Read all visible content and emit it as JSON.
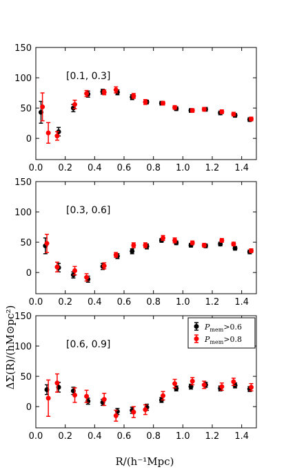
{
  "chart_data": [
    {
      "type": "scatter",
      "annotation": "[0.1, 0.3]",
      "xlim": [
        0.0,
        1.5
      ],
      "ylim": [
        -35,
        150
      ],
      "xticks": [
        "0.0",
        "0.2",
        "0.4",
        "0.6",
        "0.8",
        "1.0",
        "1.2",
        "1.4"
      ],
      "yticks": [
        "0",
        "50",
        "100",
        "150"
      ],
      "series": [
        {
          "color": "#000000",
          "points": [
            {
              "x": 0.035,
              "y": 43,
              "err": 18
            },
            {
              "x": 0.155,
              "y": 11,
              "err": 7
            },
            {
              "x": 0.255,
              "y": 50,
              "err": 6
            },
            {
              "x": 0.355,
              "y": 73,
              "err": 5
            },
            {
              "x": 0.455,
              "y": 77,
              "err": 4
            },
            {
              "x": 0.555,
              "y": 76,
              "err": 4
            },
            {
              "x": 0.655,
              "y": 68,
              "err": 4
            },
            {
              "x": 0.755,
              "y": 60,
              "err": 3
            },
            {
              "x": 0.855,
              "y": 58,
              "err": 3
            },
            {
              "x": 0.955,
              "y": 49,
              "err": 3
            },
            {
              "x": 1.055,
              "y": 46,
              "err": 3
            },
            {
              "x": 1.155,
              "y": 48,
              "err": 3
            },
            {
              "x": 1.255,
              "y": 42,
              "err": 3
            },
            {
              "x": 1.355,
              "y": 38,
              "err": 3
            },
            {
              "x": 1.455,
              "y": 31,
              "err": 3
            }
          ]
        },
        {
          "color": "#ff0000",
          "points": [
            {
              "x": 0.045,
              "y": 52,
              "err": 23
            },
            {
              "x": 0.085,
              "y": 9,
              "err": 17
            },
            {
              "x": 0.145,
              "y": 4,
              "err": 7
            },
            {
              "x": 0.265,
              "y": 56,
              "err": 7
            },
            {
              "x": 0.345,
              "y": 74,
              "err": 5
            },
            {
              "x": 0.465,
              "y": 76,
              "err": 4
            },
            {
              "x": 0.545,
              "y": 80,
              "err": 5
            },
            {
              "x": 0.665,
              "y": 70,
              "err": 4
            },
            {
              "x": 0.745,
              "y": 60,
              "err": 4
            },
            {
              "x": 0.865,
              "y": 58,
              "err": 3
            },
            {
              "x": 0.945,
              "y": 51,
              "err": 3
            },
            {
              "x": 1.065,
              "y": 46,
              "err": 3
            },
            {
              "x": 1.145,
              "y": 48,
              "err": 3
            },
            {
              "x": 1.265,
              "y": 44,
              "err": 3
            },
            {
              "x": 1.345,
              "y": 40,
              "err": 3
            },
            {
              "x": 1.465,
              "y": 32,
              "err": 3
            }
          ]
        }
      ]
    },
    {
      "type": "scatter",
      "annotation": "[0.3, 0.6]",
      "xlim": [
        0.0,
        1.5
      ],
      "ylim": [
        -35,
        150
      ],
      "xticks": [
        "0.0",
        "0.2",
        "0.4",
        "0.6",
        "0.8",
        "1.0",
        "1.2",
        "1.4"
      ],
      "yticks": [
        "0",
        "50",
        "100",
        "150"
      ],
      "series": [
        {
          "color": "#000000",
          "points": [
            {
              "x": 0.065,
              "y": 44,
              "err": 13
            },
            {
              "x": 0.155,
              "y": 8,
              "err": 7
            },
            {
              "x": 0.255,
              "y": -4,
              "err": 5
            },
            {
              "x": 0.355,
              "y": -11,
              "err": 5
            },
            {
              "x": 0.455,
              "y": 10,
              "err": 5
            },
            {
              "x": 0.555,
              "y": 27,
              "err": 4
            },
            {
              "x": 0.655,
              "y": 35,
              "err": 4
            },
            {
              "x": 0.755,
              "y": 43,
              "err": 4
            },
            {
              "x": 0.855,
              "y": 53,
              "err": 3
            },
            {
              "x": 0.955,
              "y": 49,
              "err": 3
            },
            {
              "x": 1.055,
              "y": 45,
              "err": 3
            },
            {
              "x": 1.155,
              "y": 44,
              "err": 3
            },
            {
              "x": 1.255,
              "y": 47,
              "err": 3
            },
            {
              "x": 1.355,
              "y": 40,
              "err": 3
            },
            {
              "x": 1.455,
              "y": 34,
              "err": 3
            }
          ]
        },
        {
          "color": "#ff0000",
          "points": [
            {
              "x": 0.075,
              "y": 48,
              "err": 15
            },
            {
              "x": 0.145,
              "y": 9,
              "err": 8
            },
            {
              "x": 0.265,
              "y": 3,
              "err": 7
            },
            {
              "x": 0.345,
              "y": -8,
              "err": 6
            },
            {
              "x": 0.465,
              "y": 11,
              "err": 5
            },
            {
              "x": 0.545,
              "y": 29,
              "err": 4
            },
            {
              "x": 0.665,
              "y": 45,
              "err": 4
            },
            {
              "x": 0.745,
              "y": 45,
              "err": 4
            },
            {
              "x": 0.865,
              "y": 57,
              "err": 4
            },
            {
              "x": 0.945,
              "y": 53,
              "err": 4
            },
            {
              "x": 1.065,
              "y": 49,
              "err": 3
            },
            {
              "x": 1.145,
              "y": 45,
              "err": 3
            },
            {
              "x": 1.265,
              "y": 53,
              "err": 3
            },
            {
              "x": 1.345,
              "y": 47,
              "err": 3
            },
            {
              "x": 1.465,
              "y": 36,
              "err": 3
            }
          ]
        }
      ]
    },
    {
      "type": "scatter",
      "annotation": "[0.6, 0.9]",
      "xlim": [
        0.0,
        1.5
      ],
      "ylim": [
        -35,
        150
      ],
      "xticks": [
        "0.0",
        "0.2",
        "0.4",
        "0.6",
        "0.8",
        "1.0",
        "1.2",
        "1.4"
      ],
      "yticks": [
        "0",
        "50",
        "100",
        "150"
      ],
      "ylabel": "ΔΣ(R)/(hM⊙pc²)",
      "xlabel": "R/(h⁻¹Mpc)",
      "legend": {
        "position": "top-right",
        "entries": [
          "P_mem >0.6",
          "P_mem >0.8"
        ]
      },
      "series": [
        {
          "name": "P_mem >0.6",
          "color": "#000000",
          "points": [
            {
              "x": 0.075,
              "y": 28,
              "err": 8
            },
            {
              "x": 0.155,
              "y": 32,
              "err": 8
            },
            {
              "x": 0.255,
              "y": 26,
              "err": 6
            },
            {
              "x": 0.355,
              "y": 9,
              "err": 5
            },
            {
              "x": 0.455,
              "y": 7,
              "err": 5
            },
            {
              "x": 0.555,
              "y": -8,
              "err": 5
            },
            {
              "x": 0.655,
              "y": -6,
              "err": 5
            },
            {
              "x": 0.755,
              "y": -1,
              "err": 5
            },
            {
              "x": 0.855,
              "y": 11,
              "err": 4
            },
            {
              "x": 0.955,
              "y": 30,
              "err": 4
            },
            {
              "x": 1.055,
              "y": 33,
              "err": 4
            },
            {
              "x": 1.155,
              "y": 36,
              "err": 4
            },
            {
              "x": 1.255,
              "y": 30,
              "err": 4
            },
            {
              "x": 1.355,
              "y": 35,
              "err": 4
            },
            {
              "x": 1.455,
              "y": 29,
              "err": 4
            }
          ]
        },
        {
          "name": "P_mem >0.8",
          "color": "#ff0000",
          "points": [
            {
              "x": 0.085,
              "y": 14,
              "err": 30
            },
            {
              "x": 0.145,
              "y": 39,
              "err": 15
            },
            {
              "x": 0.265,
              "y": 19,
              "err": 12
            },
            {
              "x": 0.345,
              "y": 17,
              "err": 10
            },
            {
              "x": 0.465,
              "y": 12,
              "err": 10
            },
            {
              "x": 0.545,
              "y": -15,
              "err": 9
            },
            {
              "x": 0.665,
              "y": -9,
              "err": 9
            },
            {
              "x": 0.745,
              "y": -5,
              "err": 8
            },
            {
              "x": 0.865,
              "y": 18,
              "err": 7
            },
            {
              "x": 0.945,
              "y": 38,
              "err": 7
            },
            {
              "x": 1.065,
              "y": 42,
              "err": 6
            },
            {
              "x": 1.145,
              "y": 36,
              "err": 6
            },
            {
              "x": 1.265,
              "y": 33,
              "err": 6
            },
            {
              "x": 1.345,
              "y": 41,
              "err": 6
            },
            {
              "x": 1.465,
              "y": 32,
              "err": 6
            }
          ]
        }
      ]
    }
  ],
  "axis_titles": {
    "ylabel": "ΔΣ(R)/(hM⊙pc²)",
    "xlabel": "R/(h⁻¹Mpc)"
  },
  "legend": {
    "prefix": "P",
    "subscript": "mem",
    "items": [
      {
        "threshold": ">0.6",
        "color": "#000000"
      },
      {
        "threshold": ">0.8",
        "color": "#ff0000"
      }
    ]
  }
}
